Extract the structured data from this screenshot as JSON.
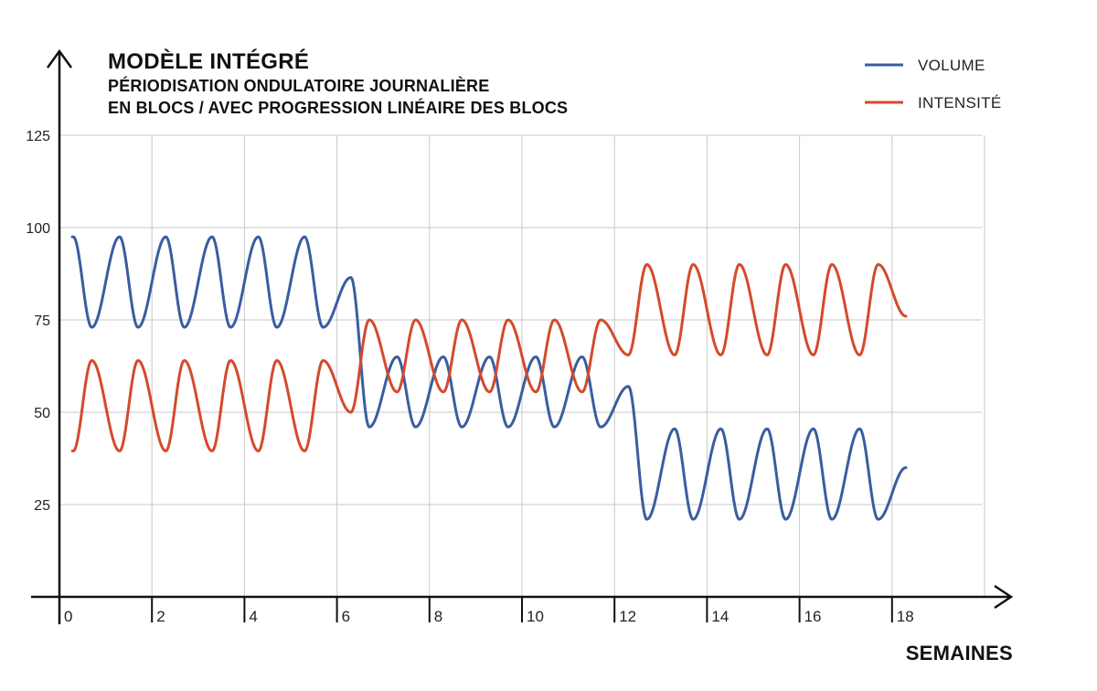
{
  "chart_data": {
    "type": "line",
    "title": "MODÈLE INTÉGRÉ",
    "subtitle": [
      "PÉRIODISATION ONDULATOIRE JOURNALIÈRE",
      "EN BLOCS / AVEC PROGRESSION LINÉAIRE DES BLOCS"
    ],
    "xlabel": "SEMAINES",
    "ylabel": "",
    "xlim": [
      0,
      20
    ],
    "ylim": [
      0,
      125
    ],
    "x_ticks": [
      0,
      2,
      4,
      6,
      8,
      10,
      12,
      14,
      16,
      18
    ],
    "x_tick_labels": [
      "0",
      "2",
      "4",
      "6",
      "8",
      "10",
      "12",
      "14",
      "16",
      "18"
    ],
    "y_ticks": [
      25,
      50,
      75,
      100,
      125
    ],
    "y_tick_labels": [
      "25",
      "50",
      "75",
      "100",
      "125"
    ],
    "grid": true,
    "legend_position": "top-right",
    "series": [
      {
        "name": "VOLUME",
        "color": "#3a5da0",
        "points": [
          [
            0.3,
            97.5
          ],
          [
            0.7,
            73
          ],
          [
            1.3,
            97.5
          ],
          [
            1.7,
            73
          ],
          [
            2.3,
            97.5
          ],
          [
            2.7,
            73
          ],
          [
            3.3,
            97.5
          ],
          [
            3.7,
            73
          ],
          [
            4.3,
            97.5
          ],
          [
            4.7,
            73
          ],
          [
            5.3,
            97.5
          ],
          [
            5.7,
            73
          ],
          [
            6.3,
            86.5
          ],
          [
            6.7,
            46
          ],
          [
            7.3,
            65
          ],
          [
            7.7,
            46
          ],
          [
            8.3,
            65
          ],
          [
            8.7,
            46
          ],
          [
            9.3,
            65
          ],
          [
            9.7,
            46
          ],
          [
            10.3,
            65
          ],
          [
            10.7,
            46
          ],
          [
            11.3,
            65
          ],
          [
            11.7,
            46
          ],
          [
            12.3,
            57
          ],
          [
            12.7,
            21
          ],
          [
            13.3,
            45.5
          ],
          [
            13.7,
            21
          ],
          [
            14.3,
            45.5
          ],
          [
            14.7,
            21
          ],
          [
            15.3,
            45.5
          ],
          [
            15.7,
            21
          ],
          [
            16.3,
            45.5
          ],
          [
            16.7,
            21
          ],
          [
            17.3,
            45.5
          ],
          [
            17.7,
            21
          ],
          [
            18.3,
            35
          ]
        ]
      },
      {
        "name": "INTENSITÉ",
        "color": "#d44a2c",
        "points": [
          [
            0.3,
            39.5
          ],
          [
            0.7,
            64
          ],
          [
            1.3,
            39.5
          ],
          [
            1.7,
            64
          ],
          [
            2.3,
            39.5
          ],
          [
            2.7,
            64
          ],
          [
            3.3,
            39.5
          ],
          [
            3.7,
            64
          ],
          [
            4.3,
            39.5
          ],
          [
            4.7,
            64
          ],
          [
            5.3,
            39.5
          ],
          [
            5.7,
            64
          ],
          [
            6.3,
            50
          ],
          [
            6.7,
            75
          ],
          [
            7.3,
            55.5
          ],
          [
            7.7,
            75
          ],
          [
            8.3,
            55.5
          ],
          [
            8.7,
            75
          ],
          [
            9.3,
            55.5
          ],
          [
            9.7,
            75
          ],
          [
            10.3,
            55.5
          ],
          [
            10.7,
            75
          ],
          [
            11.3,
            55.5
          ],
          [
            11.7,
            75
          ],
          [
            12.3,
            65.5
          ],
          [
            12.7,
            90
          ],
          [
            13.3,
            65.5
          ],
          [
            13.7,
            90
          ],
          [
            14.3,
            65.5
          ],
          [
            14.7,
            90
          ],
          [
            15.3,
            65.5
          ],
          [
            15.7,
            90
          ],
          [
            16.3,
            65.5
          ],
          [
            16.7,
            90
          ],
          [
            17.3,
            65.5
          ],
          [
            17.7,
            90
          ],
          [
            18.3,
            76
          ]
        ]
      }
    ]
  }
}
